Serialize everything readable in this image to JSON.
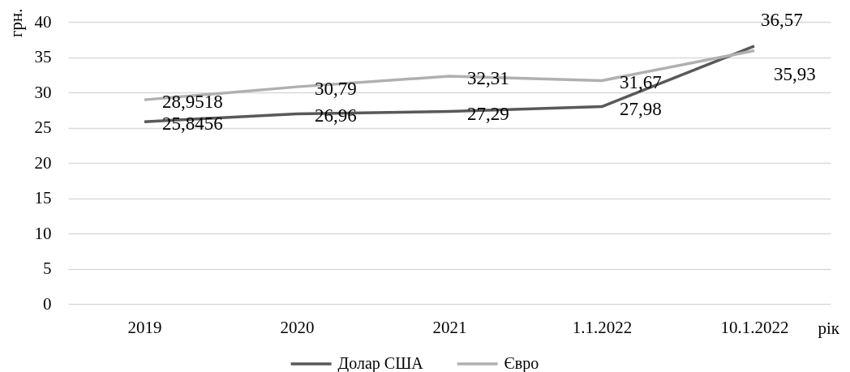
{
  "chart_data": {
    "type": "line",
    "ylabel": "грн.",
    "xlabel": "рік",
    "categories": [
      "2019",
      "2020",
      "2021",
      "1.1.2022",
      "10.1.2022"
    ],
    "series": [
      {
        "name": "Долар США",
        "color": "#595959",
        "values": [
          25.8456,
          26.96,
          27.29,
          27.98,
          36.57
        ],
        "value_labels": [
          "25,8456",
          "26,96",
          "27,29",
          "27,98",
          "36,57"
        ]
      },
      {
        "name": "Євро",
        "color": "#b0b0b0",
        "values": [
          28.9518,
          30.79,
          32.31,
          31.67,
          35.93
        ],
        "value_labels": [
          "28,9518",
          "30,79",
          "32,31",
          "31,67",
          "35,93"
        ]
      }
    ],
    "ylim": [
      0,
      40
    ],
    "yticks": [
      0,
      5,
      10,
      15,
      20,
      25,
      30,
      35,
      40
    ],
    "grid": "y",
    "legend": "bottom"
  }
}
